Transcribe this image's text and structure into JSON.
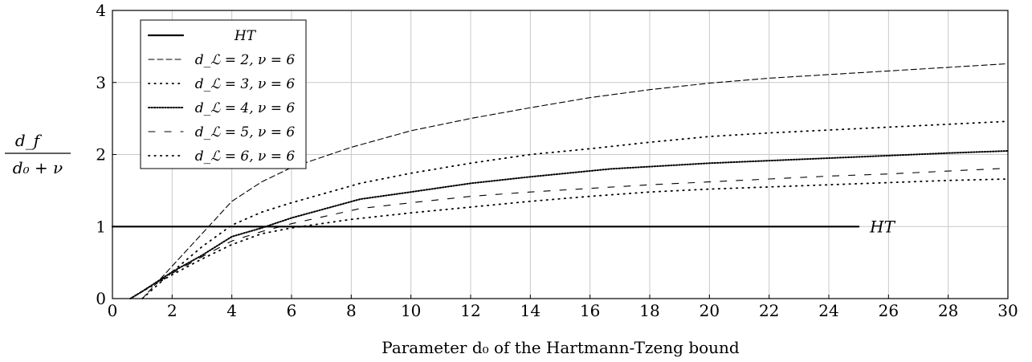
{
  "chart_data": {
    "type": "line",
    "xlabel": "Parameter d₀ of the Hartmann-Tzeng bound",
    "ylabel_numerator": "d_f",
    "ylabel_denominator": "d₀ + ν",
    "xlim": [
      0,
      30
    ],
    "ylim": [
      0,
      4
    ],
    "xticks": [
      0,
      2,
      4,
      6,
      8,
      10,
      12,
      14,
      16,
      18,
      20,
      22,
      24,
      26,
      28,
      30
    ],
    "yticks": [
      0,
      1,
      2,
      3,
      4
    ],
    "grid": true,
    "legend_position": "top-left",
    "series": [
      {
        "name": "HT",
        "dash": "solid",
        "x": [
          0,
          25
        ],
        "y": [
          1,
          1
        ],
        "annotation": "HT"
      },
      {
        "name": "d_ℒ = 2, ν = 6",
        "dash": "dashed-long",
        "x": [
          1,
          2,
          3,
          4,
          5,
          6,
          8,
          10,
          12,
          14,
          16,
          18,
          20,
          22,
          24,
          26,
          28,
          30
        ],
        "y": [
          0,
          0.45,
          0.9,
          1.35,
          1.62,
          1.82,
          2.1,
          2.33,
          2.5,
          2.65,
          2.79,
          2.9,
          2.99,
          3.06,
          3.11,
          3.16,
          3.21,
          3.26
        ]
      },
      {
        "name": "d_ℒ = 3, ν = 6",
        "dash": "dotted",
        "x": [
          1,
          2,
          3,
          4,
          5,
          6,
          8.3,
          10,
          12,
          14,
          16,
          18,
          20,
          22,
          24,
          26,
          28,
          30
        ],
        "y": [
          0,
          0.37,
          0.72,
          1.02,
          1.2,
          1.33,
          1.6,
          1.74,
          1.88,
          2.0,
          2.08,
          2.17,
          2.25,
          2.3,
          2.34,
          2.38,
          2.42,
          2.46
        ]
      },
      {
        "name": "d_ℒ = 4, ν = 6",
        "dash": "dense-dotted",
        "x": [
          0.6,
          1,
          2,
          3,
          4,
          5,
          6,
          8.3,
          10,
          12,
          14,
          16.7,
          20,
          24,
          28,
          30
        ],
        "y": [
          0,
          0.1,
          0.37,
          0.6,
          0.86,
          0.98,
          1.12,
          1.38,
          1.48,
          1.6,
          1.69,
          1.8,
          1.88,
          1.95,
          2.02,
          2.05
        ]
      },
      {
        "name": "d_ℒ = 5, ν = 6",
        "dash": "dashed-loose",
        "x": [
          0.6,
          1,
          2,
          3,
          4,
          5,
          6,
          8.3,
          10,
          12,
          14,
          16,
          18,
          20,
          22,
          24,
          26,
          28,
          30
        ],
        "y": [
          0,
          0.1,
          0.35,
          0.58,
          0.8,
          0.93,
          1.04,
          1.25,
          1.33,
          1.42,
          1.48,
          1.53,
          1.58,
          1.62,
          1.66,
          1.7,
          1.73,
          1.77,
          1.81
        ]
      },
      {
        "name": "d_ℒ = 6, ν = 6",
        "dash": "dotted",
        "x": [
          0.6,
          1,
          2,
          3,
          4,
          5,
          6,
          8,
          10,
          12,
          14,
          16,
          18,
          20,
          22,
          24,
          26,
          28,
          30
        ],
        "y": [
          0,
          0.1,
          0.33,
          0.55,
          0.75,
          0.9,
          0.98,
          1.1,
          1.19,
          1.27,
          1.35,
          1.42,
          1.48,
          1.52,
          1.55,
          1.58,
          1.61,
          1.64,
          1.66
        ]
      }
    ]
  }
}
